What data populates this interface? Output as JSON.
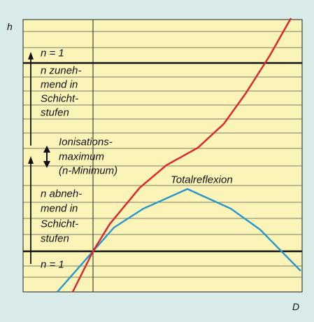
{
  "figure": {
    "axis_y_label": "h",
    "axis_x_label": "D",
    "top_level_label": "n = 1",
    "bottom_level_label": "n = 1",
    "upper_annotation": [
      "n zuneh-",
      "mend in",
      "Schicht-",
      "stufen"
    ],
    "middle_annotation": [
      "Ionisations-",
      "maximum",
      "(n-Minimum)"
    ],
    "lower_annotation": [
      "n abneh-",
      "mend in",
      "Schicht-",
      "stufen"
    ],
    "apex_label": "Totalreflexion"
  },
  "colors": {
    "background": "#d8ebe8",
    "plot_area": "#fbf4b8",
    "grid": "#222222",
    "red_curve": "#e3202c",
    "blue_curve": "#2497cf"
  }
}
